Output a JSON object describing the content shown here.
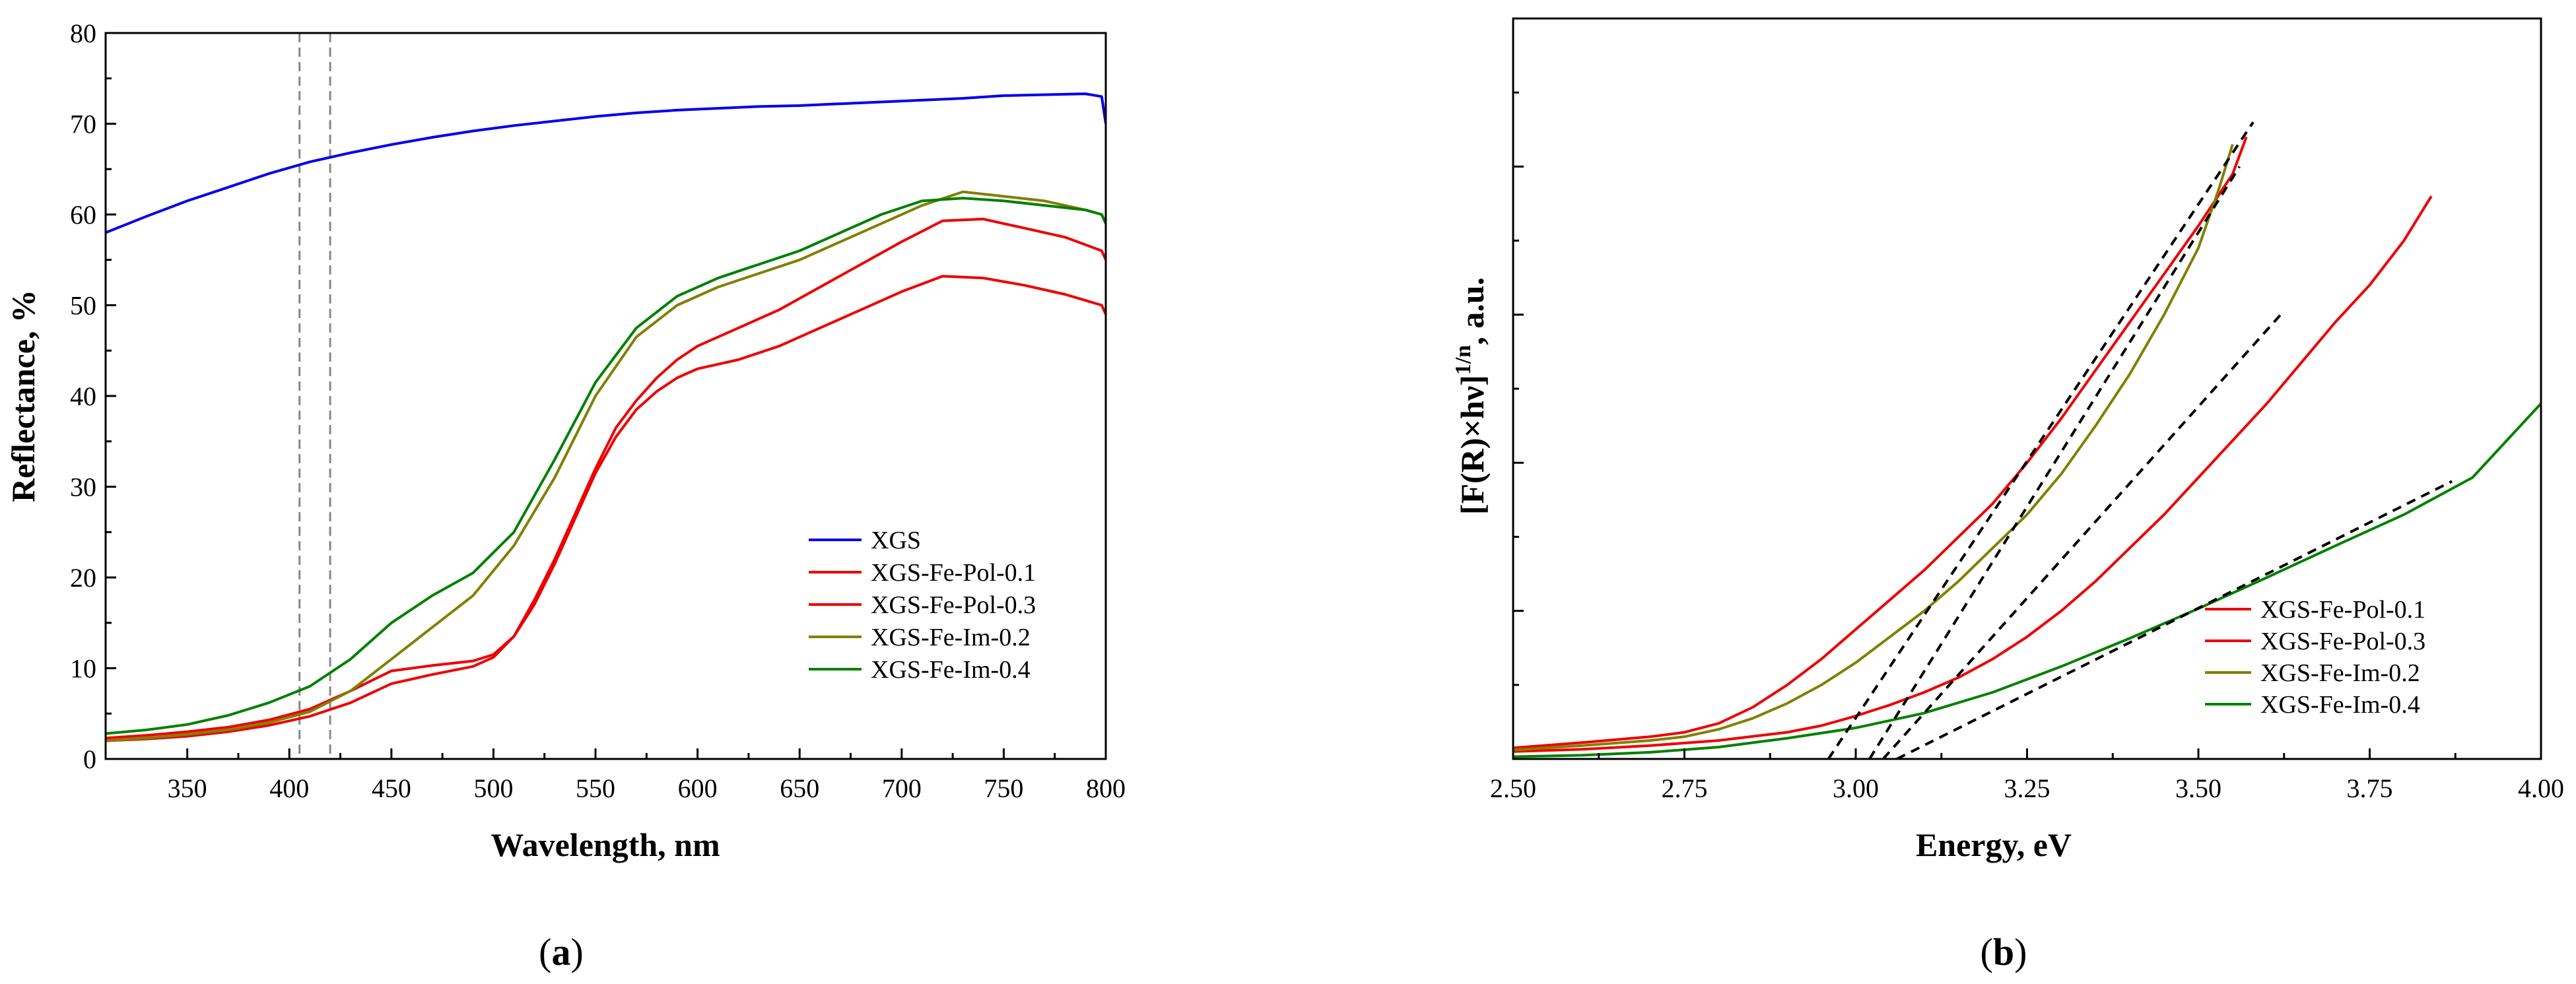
{
  "chart_data": [
    {
      "panel": "(a)",
      "panel_open": "(",
      "panel_letter": "a",
      "panel_close": ")",
      "type": "line",
      "title": "",
      "xlabel": "Wavelength, nm",
      "ylabel": "Reflectance, %",
      "xlim": [
        310,
        800
      ],
      "ylim": [
        0,
        80
      ],
      "xticks": [
        350,
        400,
        450,
        500,
        550,
        600,
        650,
        700,
        750,
        800
      ],
      "yticks": [
        0,
        10,
        20,
        30,
        40,
        50,
        60,
        70,
        80
      ],
      "grid": false,
      "legend_position": "lower-right",
      "vertical_reference_lines": [
        405,
        420
      ],
      "series": [
        {
          "name": "XGS",
          "color": "#0000ee",
          "x": [
            310,
            330,
            350,
            370,
            390,
            410,
            430,
            450,
            470,
            490,
            510,
            530,
            550,
            570,
            590,
            610,
            630,
            650,
            670,
            690,
            710,
            730,
            750,
            770,
            790,
            798,
            800
          ],
          "y": [
            58,
            59.8,
            61.5,
            63,
            64.5,
            65.8,
            66.8,
            67.7,
            68.5,
            69.2,
            69.8,
            70.3,
            70.8,
            71.2,
            71.5,
            71.7,
            71.9,
            72,
            72.2,
            72.4,
            72.6,
            72.8,
            73.1,
            73.2,
            73.3,
            73,
            70
          ]
        },
        {
          "name": "XGS-Fe-Pol-0.1",
          "color": "#ee0000",
          "x": [
            310,
            330,
            350,
            370,
            390,
            410,
            430,
            450,
            470,
            490,
            500,
            510,
            520,
            530,
            540,
            550,
            560,
            570,
            580,
            590,
            600,
            610,
            620,
            640,
            660,
            680,
            700,
            720,
            740,
            760,
            780,
            798,
            800
          ],
          "y": [
            2,
            2.2,
            2.5,
            3,
            3.7,
            4.7,
            6.2,
            8.3,
            9.3,
            10.2,
            11.2,
            13.5,
            17,
            21.5,
            26.5,
            31.5,
            35.5,
            38.5,
            40.5,
            42,
            43,
            43.5,
            44,
            45.5,
            47.5,
            49.5,
            51.5,
            53.2,
            53,
            52.2,
            51.2,
            50,
            49
          ]
        },
        {
          "name": "XGS-Fe-Pol-0.3",
          "color": "#ee0000",
          "x": [
            310,
            330,
            350,
            370,
            390,
            410,
            430,
            450,
            470,
            490,
            500,
            510,
            520,
            530,
            540,
            550,
            560,
            570,
            580,
            590,
            600,
            620,
            640,
            660,
            680,
            700,
            720,
            740,
            760,
            780,
            798,
            800
          ],
          "y": [
            2.3,
            2.6,
            3,
            3.5,
            4.3,
            5.5,
            7.5,
            9.7,
            10.3,
            10.8,
            11.5,
            13.5,
            17.5,
            22,
            27,
            32,
            36.5,
            39.5,
            42,
            44,
            45.5,
            47.5,
            49.5,
            52,
            54.5,
            57,
            59.3,
            59.5,
            58.5,
            57.5,
            56,
            55
          ]
        },
        {
          "name": "XGS-Fe-Im-0.2",
          "color": "#808000",
          "x": [
            310,
            330,
            350,
            370,
            390,
            410,
            430,
            450,
            470,
            490,
            510,
            530,
            550,
            570,
            590,
            610,
            630,
            650,
            670,
            690,
            710,
            730,
            750,
            770,
            790,
            798,
            800
          ],
          "y": [
            2,
            2.3,
            2.7,
            3.2,
            4,
            5.2,
            7.5,
            11,
            14.5,
            18,
            23.5,
            31,
            40,
            46.5,
            50,
            52,
            53.5,
            55,
            57,
            59,
            61,
            62.5,
            62,
            61.5,
            60.5,
            60,
            59
          ]
        },
        {
          "name": "XGS-Fe-Im-0.4",
          "color": "#008000",
          "x": [
            310,
            330,
            350,
            370,
            390,
            410,
            430,
            450,
            470,
            490,
            510,
            530,
            550,
            570,
            590,
            610,
            630,
            650,
            670,
            690,
            710,
            730,
            750,
            770,
            790,
            798,
            800
          ],
          "y": [
            2.8,
            3.2,
            3.8,
            4.8,
            6.2,
            8,
            11,
            15,
            18,
            20.5,
            25,
            33,
            41.5,
            47.5,
            51,
            53,
            54.5,
            56,
            58,
            60,
            61.5,
            61.8,
            61.5,
            61,
            60.5,
            60,
            59
          ]
        }
      ]
    },
    {
      "panel": "(b)",
      "panel_open": "(",
      "panel_letter": "b",
      "panel_close": ")",
      "type": "line",
      "title": "",
      "xlabel": "Energy, eV",
      "ylabel_main": "[F(R)×hν]",
      "ylabel_sup": "1/n",
      "ylabel_tail": ", a.u.",
      "xlim": [
        2.5,
        4.0
      ],
      "ylim": [
        0,
        100
      ],
      "y_tick_labels_shown": false,
      "xticks": [
        "2.50",
        "2.75",
        "3.00",
        "3.25",
        "3.50",
        "3.75",
        "4.00"
      ],
      "grid": false,
      "legend_position": "lower-right",
      "series": [
        {
          "name": "XGS-Fe-Pol-0.1",
          "color": "#ee0000",
          "x": [
            2.5,
            2.6,
            2.7,
            2.75,
            2.8,
            2.85,
            2.9,
            2.95,
            3.0,
            3.05,
            3.1,
            3.15,
            3.2,
            3.25,
            3.3,
            3.35,
            3.4,
            3.45,
            3.5,
            3.55,
            3.57
          ],
          "y": [
            1.5,
            2.2,
            3,
            3.6,
            4.8,
            7,
            10,
            13.5,
            17.5,
            21.5,
            25.5,
            30,
            34.5,
            40,
            46,
            52.5,
            59,
            65.5,
            72,
            79,
            84
          ]
        },
        {
          "name": "XGS-Fe-Pol-0.3",
          "color": "#ee0000",
          "x": [
            2.5,
            2.6,
            2.7,
            2.8,
            2.9,
            2.95,
            3.0,
            3.05,
            3.1,
            3.15,
            3.2,
            3.25,
            3.3,
            3.35,
            3.4,
            3.45,
            3.5,
            3.55,
            3.6,
            3.65,
            3.7,
            3.75,
            3.8,
            3.84
          ],
          "y": [
            1,
            1.3,
            1.8,
            2.5,
            3.6,
            4.5,
            5.8,
            7.3,
            9,
            11,
            13.5,
            16.5,
            20,
            24,
            28.5,
            33,
            38,
            43,
            48,
            53.5,
            59,
            64,
            70,
            76
          ]
        },
        {
          "name": "XGS-Fe-Im-0.2",
          "color": "#808000",
          "x": [
            2.5,
            2.6,
            2.7,
            2.75,
            2.8,
            2.85,
            2.9,
            2.95,
            3.0,
            3.05,
            3.1,
            3.15,
            3.2,
            3.25,
            3.3,
            3.35,
            3.4,
            3.45,
            3.5,
            3.53,
            3.55
          ],
          "y": [
            1.2,
            1.8,
            2.5,
            3,
            4,
            5.5,
            7.5,
            10,
            13,
            16.5,
            20,
            24,
            28.5,
            33,
            38.5,
            45,
            52,
            60,
            69,
            77,
            83
          ]
        },
        {
          "name": "XGS-Fe-Im-0.4",
          "color": "#008000",
          "x": [
            2.5,
            2.6,
            2.7,
            2.8,
            2.9,
            3.0,
            3.1,
            3.2,
            3.3,
            3.4,
            3.5,
            3.6,
            3.7,
            3.8,
            3.9,
            3.95,
            4.0
          ],
          "y": [
            0.3,
            0.5,
            0.9,
            1.6,
            2.8,
            4.2,
            6.2,
            9,
            12.5,
            16.3,
            20.3,
            24.5,
            28.8,
            33,
            38,
            43,
            48
          ]
        },
        {
          "name": "fit-1",
          "color": "#000000",
          "dashed": true,
          "show_in_legend": false,
          "x": [
            2.96,
            3.58
          ],
          "y": [
            0,
            86
          ]
        },
        {
          "name": "fit-2",
          "color": "#000000",
          "dashed": true,
          "show_in_legend": false,
          "x": [
            3.02,
            3.56
          ],
          "y": [
            0,
            80
          ]
        },
        {
          "name": "fit-3",
          "color": "#000000",
          "dashed": true,
          "show_in_legend": false,
          "x": [
            3.04,
            3.62
          ],
          "y": [
            0,
            60
          ]
        },
        {
          "name": "fit-4",
          "color": "#000000",
          "dashed": true,
          "show_in_legend": false,
          "x": [
            3.06,
            3.87
          ],
          "y": [
            0,
            37.5
          ]
        }
      ]
    }
  ]
}
